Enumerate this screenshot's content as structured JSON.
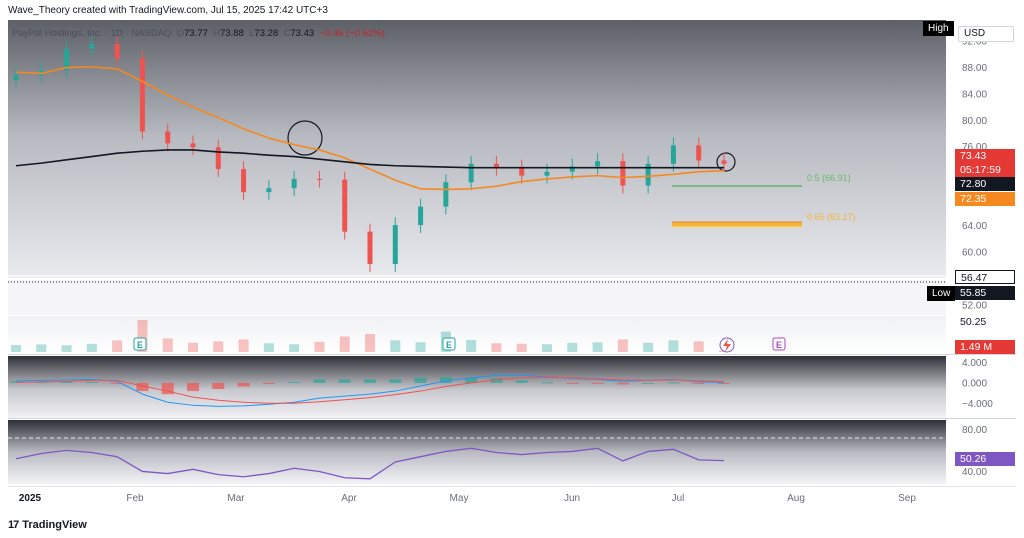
{
  "header": {
    "credit": "Wave_Theory created with TradingView.com, Jul 15, 2025 17:42 UTC+3",
    "symbol": "PayPal Holdings, Inc. · 1D · NASDAQ",
    "o_label": "O",
    "o": "73.77",
    "h_label": "H",
    "h": "73.88",
    "l_label": "L",
    "l": "73.28",
    "c_label": "C",
    "c": "73.43",
    "change": "−0.46 (−0.62%)"
  },
  "footer": {
    "brand": "TradingView",
    "logo": "17"
  },
  "currency": "USD",
  "markers": {
    "high": "High",
    "low": "Low"
  },
  "price_tags": {
    "last": "73.43",
    "countdown": "05:17:59",
    "ma200": "72.80",
    "ma50": "72.35",
    "high_level": "56.47",
    "low_level": "55.85",
    "rsi_level": "50.25",
    "volume": "1.49 M",
    "rsi": "50.26"
  },
  "fib_labels": {
    "top": "0.5 (66.91)",
    "bottom": "0.65 (63.17)"
  },
  "events": [
    "E",
    "E",
    "E"
  ],
  "colors": {
    "up": "#26a69a",
    "down": "#ef5350",
    "ma50": "#f5891f",
    "ma200": "#131722",
    "rsi": "#7e57c2",
    "macd": "#2196f3",
    "signal": "#ef5350",
    "fib_top": "#4caf50",
    "fib_bottom": "#f2b53a"
  },
  "chart_data": [
    {
      "type": "candlestick",
      "title": "PayPal Holdings, Inc. · 1D · NASDAQ",
      "xlabel": "",
      "ylabel": "",
      "x_ticks": [
        "2025",
        "Feb",
        "Mar",
        "Apr",
        "May",
        "Jun",
        "Jul",
        "Aug",
        "Sep"
      ],
      "y_ticks": [
        52.0,
        56.0,
        60.0,
        64.0,
        68.0,
        72.0,
        76.0,
        80.0,
        84.0,
        88.0,
        92.0
      ],
      "y_tick_labels": [
        "52.00",
        "56.00",
        "60.00",
        "64.00",
        "68.00",
        "72.00",
        "76.00",
        "80.00",
        "84.00",
        "88.00",
        "92.00"
      ],
      "ylim": [
        50.0,
        94.0
      ],
      "x": [
        "Jan 2",
        "Jan 9",
        "Jan 16",
        "Jan 23",
        "Jan 30",
        "Feb 6",
        "Feb 13",
        "Feb 20",
        "Feb 27",
        "Mar 6",
        "Mar 13",
        "Mar 20",
        "Mar 27",
        "Apr 3",
        "Apr 10",
        "Apr 17",
        "Apr 24",
        "May 1",
        "May 8",
        "May 15",
        "May 22",
        "May 29",
        "Jun 5",
        "Jun 12",
        "Jun 19",
        "Jun 26",
        "Jul 3",
        "Jul 10",
        "Jul 15"
      ],
      "close": [
        86.9,
        87.6,
        90.8,
        91.6,
        89.4,
        78.3,
        76.5,
        75.9,
        72.6,
        69.1,
        69.7,
        71.1,
        71.0,
        63.1,
        58.2,
        64.1,
        66.9,
        70.6,
        73.4,
        72.8,
        71.6,
        72.2,
        73.0,
        73.8,
        70.1,
        73.4,
        76.2,
        73.9,
        73.4
      ],
      "series": [
        {
          "name": "MA 50",
          "values": [
            87.3,
            87.1,
            88.0,
            88.1,
            87.8,
            85.9,
            83.8,
            82.0,
            80.4,
            78.7,
            77.3,
            76.3,
            75.5,
            74.3,
            72.6,
            70.9,
            69.6,
            69.5,
            69.6,
            70.0,
            70.7,
            71.1,
            71.4,
            71.6,
            71.3,
            71.5,
            71.8,
            72.2,
            72.35
          ]
        },
        {
          "name": "MA 200",
          "values": [
            73.1,
            73.5,
            74.0,
            74.5,
            75.0,
            75.3,
            75.5,
            75.5,
            75.2,
            75.0,
            74.7,
            74.5,
            74.1,
            73.7,
            73.3,
            73.1,
            73.0,
            72.9,
            72.8,
            72.8,
            72.8,
            72.8,
            72.8,
            72.8,
            72.8,
            72.8,
            72.8,
            72.8,
            72.8
          ]
        }
      ],
      "levels": [
        {
          "label": "0.5 (66.91)",
          "value": 66.91
        },
        {
          "label": "0.65 (63.17)",
          "value": 63.17
        },
        {
          "label": "High",
          "value": 56.47
        },
        {
          "label": "Low",
          "value": 55.85
        }
      ],
      "grid": false,
      "legend": "none"
    },
    {
      "type": "bar",
      "title": "Volume",
      "x": [
        "Jan 2",
        "Jan 9",
        "Jan 16",
        "Jan 23",
        "Jan 30",
        "Feb 6",
        "Feb 13",
        "Feb 20",
        "Feb 27",
        "Mar 6",
        "Mar 13",
        "Mar 20",
        "Mar 27",
        "Apr 3",
        "Apr 10",
        "Apr 17",
        "Apr 24",
        "May 1",
        "May 8",
        "May 15",
        "May 22",
        "May 29",
        "Jun 5",
        "Jun 12",
        "Jun 19",
        "Jun 26",
        "Jul 3",
        "Jul 10",
        "Jul 15"
      ],
      "values": [
        7.2,
        7.8,
        6.9,
        8.4,
        12.0,
        33.0,
        14.0,
        9.5,
        11.0,
        13.0,
        9.0,
        8.0,
        10.5,
        16.0,
        18.5,
        12.0,
        10.0,
        21.0,
        12.5,
        9.0,
        8.5,
        8.0,
        9.5,
        10.0,
        13.0,
        9.5,
        12.0,
        11.0,
        1.49
      ],
      "last_label": "1.49 M"
    },
    {
      "type": "line",
      "title": "MACD",
      "y_ticks": [
        4.0,
        0.0,
        -4.0
      ],
      "y_tick_labels": [
        "4.000",
        "0.000",
        "−4.000"
      ],
      "ylim": [
        -6.5,
        4.5
      ],
      "x": [
        "Jan 2",
        "Jan 9",
        "Jan 16",
        "Jan 23",
        "Jan 30",
        "Feb 6",
        "Feb 13",
        "Feb 20",
        "Feb 27",
        "Mar 6",
        "Mar 13",
        "Mar 20",
        "Mar 27",
        "Apr 3",
        "Apr 10",
        "Apr 17",
        "Apr 24",
        "May 1",
        "May 8",
        "May 15",
        "May 22",
        "May 29",
        "Jun 5",
        "Jun 12",
        "Jun 19",
        "Jun 26",
        "Jul 3",
        "Jul 10",
        "Jul 15"
      ],
      "series": [
        {
          "name": "MACD",
          "values": [
            0.4,
            0.5,
            0.6,
            0.7,
            0.3,
            -2.2,
            -3.8,
            -4.4,
            -4.6,
            -4.5,
            -4.2,
            -3.8,
            -3.0,
            -2.6,
            -2.2,
            -1.6,
            -0.6,
            0.4,
            1.0,
            1.5,
            1.5,
            1.2,
            0.9,
            0.7,
            0.3,
            0.5,
            0.7,
            0.2,
            0.1
          ]
        },
        {
          "name": "Signal",
          "values": [
            0.1,
            0.2,
            0.3,
            0.5,
            0.5,
            -0.6,
            -1.6,
            -2.8,
            -3.4,
            -3.8,
            -4.0,
            -4.0,
            -3.7,
            -3.3,
            -2.9,
            -2.3,
            -1.6,
            -0.7,
            0.0,
            0.6,
            1.0,
            1.1,
            1.0,
            0.8,
            0.6,
            0.5,
            0.6,
            0.4,
            0.3
          ]
        },
        {
          "name": "Histogram",
          "values": [
            0.3,
            0.3,
            0.3,
            0.2,
            -0.2,
            -1.6,
            -2.2,
            -1.6,
            -1.2,
            -0.7,
            -0.2,
            0.2,
            0.7,
            0.7,
            0.7,
            0.7,
            1.0,
            1.1,
            1.0,
            0.9,
            0.5,
            0.1,
            -0.1,
            -0.1,
            -0.3,
            0.0,
            0.1,
            -0.2,
            -0.2
          ]
        }
      ]
    },
    {
      "type": "line",
      "title": "RSI",
      "y_ticks": [
        80.0,
        40.0
      ],
      "y_tick_labels": [
        "80.00",
        "40.00"
      ],
      "ylim": [
        30.0,
        85.0
      ],
      "band": [
        70.0,
        30.0
      ],
      "x": [
        "Jan 2",
        "Jan 9",
        "Jan 16",
        "Jan 23",
        "Jan 30",
        "Feb 6",
        "Feb 13",
        "Feb 20",
        "Feb 27",
        "Mar 6",
        "Mar 13",
        "Mar 20",
        "Mar 27",
        "Apr 3",
        "Apr 10",
        "Apr 17",
        "Apr 24",
        "May 1",
        "May 8",
        "May 15",
        "May 22",
        "May 29",
        "Jun 5",
        "Jun 12",
        "Jun 19",
        "Jun 26",
        "Jul 3",
        "Jul 10",
        "Jul 15"
      ],
      "series": [
        {
          "name": "RSI",
          "values": [
            52,
            57,
            60,
            58,
            54,
            40,
            38,
            42,
            37,
            35,
            38,
            43,
            40,
            34,
            33,
            49,
            54,
            59,
            62,
            58,
            56,
            58,
            59,
            62,
            50,
            59,
            61,
            51,
            50.26
          ]
        }
      ]
    }
  ]
}
